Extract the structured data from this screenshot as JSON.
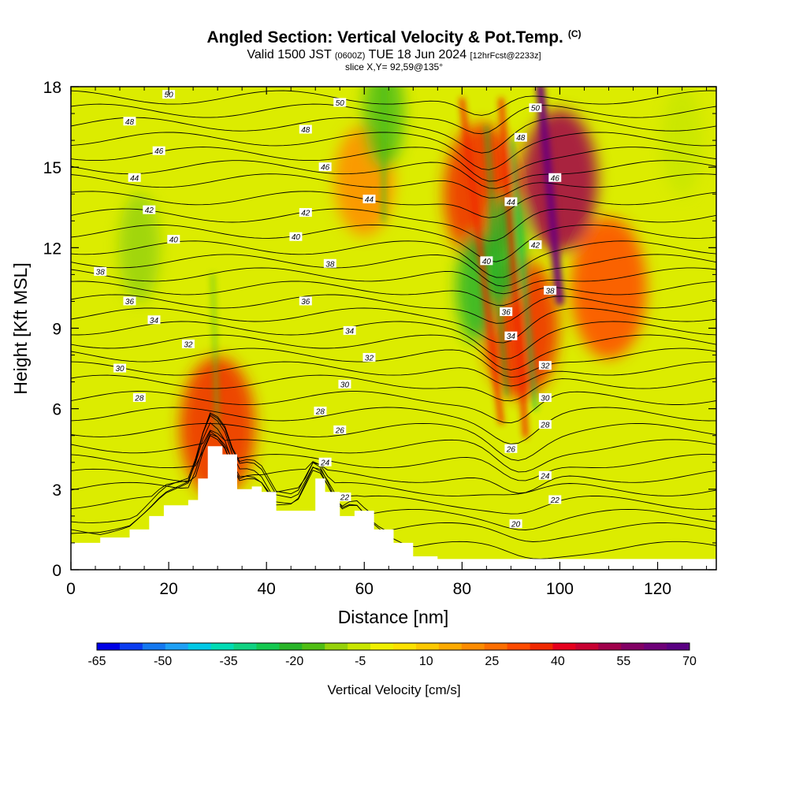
{
  "header": {
    "title": "Angled Section: Vertical Velocity & Pot.Temp.",
    "title_tag": "(C)",
    "valid_a": "Valid 1500 JST",
    "valid_b": "(0600Z)",
    "valid_c": "TUE 18 Jun 2024",
    "valid_d": "[12hrFcst@2233z]",
    "slice": "slice X,Y= 92,59@135°"
  },
  "chart_data": {
    "type": "heatmap",
    "title": "Angled Section: Vertical Velocity & Pot.Temp.",
    "xlabel": "Distance [nm]",
    "ylabel": "Height [Kft MSL]",
    "xlim": [
      0,
      132
    ],
    "ylim": [
      0,
      18
    ],
    "x_ticks": [
      "0",
      "20",
      "40",
      "60",
      "80",
      "100",
      "120"
    ],
    "y_ticks": [
      "0",
      "3",
      "6",
      "9",
      "12",
      "15",
      "18"
    ],
    "colorbar": {
      "label": "Vertical Velocity [cm/s]",
      "tick_labels": [
        "-65",
        "-50",
        "-35",
        "-20",
        "-5",
        "10",
        "25",
        "40",
        "55",
        "70"
      ],
      "colors": [
        "#0000e6",
        "#0a3cf0",
        "#1478f0",
        "#1ea0f5",
        "#00c8e6",
        "#00dcb4",
        "#10d282",
        "#14c850",
        "#28b428",
        "#50be14",
        "#96d20a",
        "#c8e600",
        "#f0f000",
        "#ffe100",
        "#ffc800",
        "#ffaa00",
        "#ff8c00",
        "#ff6e00",
        "#ff4b00",
        "#f02800",
        "#e6001e",
        "#c80032",
        "#a0004b",
        "#820064",
        "#6e0078",
        "#5a0082"
      ]
    },
    "terrain_profile": [
      {
        "x": 0,
        "y": 1.0
      },
      {
        "x": 6,
        "y": 1.2
      },
      {
        "x": 12,
        "y": 1.5
      },
      {
        "x": 16,
        "y": 2.0
      },
      {
        "x": 19,
        "y": 2.4
      },
      {
        "x": 24,
        "y": 2.6
      },
      {
        "x": 26,
        "y": 3.4
      },
      {
        "x": 28,
        "y": 4.6
      },
      {
        "x": 31,
        "y": 4.3
      },
      {
        "x": 34,
        "y": 3.0
      },
      {
        "x": 37,
        "y": 3.1
      },
      {
        "x": 39,
        "y": 2.9
      },
      {
        "x": 42,
        "y": 2.2
      },
      {
        "x": 46,
        "y": 2.2
      },
      {
        "x": 50,
        "y": 3.4
      },
      {
        "x": 52,
        "y": 2.9
      },
      {
        "x": 55,
        "y": 2.0
      },
      {
        "x": 58,
        "y": 2.2
      },
      {
        "x": 62,
        "y": 1.5
      },
      {
        "x": 66,
        "y": 1.0
      },
      {
        "x": 70,
        "y": 0.5
      },
      {
        "x": 75,
        "y": 0.4
      },
      {
        "x": 132,
        "y": 0.3
      }
    ],
    "theta_contours": [
      {
        "label": "20",
        "base": 1.5
      },
      {
        "label": "22",
        "base": 2.5
      },
      {
        "label": "24",
        "base": 3.5
      },
      {
        "label": "26",
        "base": 4.6
      },
      {
        "label": "28",
        "base": 5.8
      },
      {
        "label": "30",
        "base": 7.0
      },
      {
        "label": "32",
        "base": 8.0
      },
      {
        "label": "34",
        "base": 9.0
      },
      {
        "label": "36",
        "base": 10.0
      },
      {
        "label": "38",
        "base": 11.0
      },
      {
        "label": "40",
        "base": 12.0
      },
      {
        "label": "42",
        "base": 13.2
      },
      {
        "label": "44",
        "base": 14.5
      },
      {
        "label": "46",
        "base": 15.5
      },
      {
        "label": "48",
        "base": 16.6
      },
      {
        "label": "50",
        "base": 17.6
      }
    ],
    "contour_labels": [
      {
        "label": "50",
        "x": 20,
        "y": 17.7
      },
      {
        "label": "48",
        "x": 12,
        "y": 16.7
      },
      {
        "label": "46",
        "x": 18,
        "y": 15.6
      },
      {
        "label": "44",
        "x": 13,
        "y": 14.6
      },
      {
        "label": "42",
        "x": 16,
        "y": 13.4
      },
      {
        "label": "40",
        "x": 21,
        "y": 12.3
      },
      {
        "label": "38",
        "x": 6,
        "y": 11.1
      },
      {
        "label": "36",
        "x": 12,
        "y": 10.0
      },
      {
        "label": "34",
        "x": 17,
        "y": 9.3
      },
      {
        "label": "32",
        "x": 24,
        "y": 8.4
      },
      {
        "label": "30",
        "x": 10,
        "y": 7.5
      },
      {
        "label": "28",
        "x": 14,
        "y": 6.4
      },
      {
        "label": "50",
        "x": 55,
        "y": 17.4
      },
      {
        "label": "48",
        "x": 48,
        "y": 16.4
      },
      {
        "label": "46",
        "x": 52,
        "y": 15.0
      },
      {
        "label": "44",
        "x": 61,
        "y": 13.8
      },
      {
        "label": "42",
        "x": 48,
        "y": 13.3
      },
      {
        "label": "40",
        "x": 46,
        "y": 12.4
      },
      {
        "label": "38",
        "x": 53,
        "y": 11.4
      },
      {
        "label": "36",
        "x": 48,
        "y": 10.0
      },
      {
        "label": "34",
        "x": 57,
        "y": 8.9
      },
      {
        "label": "32",
        "x": 61,
        "y": 7.9
      },
      {
        "label": "30",
        "x": 56,
        "y": 6.9
      },
      {
        "label": "28",
        "x": 51,
        "y": 5.9
      },
      {
        "label": "26",
        "x": 55,
        "y": 5.2
      },
      {
        "label": "24",
        "x": 52,
        "y": 4.0
      },
      {
        "label": "22",
        "x": 56,
        "y": 2.7
      },
      {
        "label": "20",
        "x": 91,
        "y": 1.7
      },
      {
        "label": "22",
        "x": 99,
        "y": 2.6
      },
      {
        "label": "24",
        "x": 97,
        "y": 3.5
      },
      {
        "label": "26",
        "x": 90,
        "y": 4.5
      },
      {
        "label": "28",
        "x": 97,
        "y": 5.4
      },
      {
        "label": "30",
        "x": 97,
        "y": 6.4
      },
      {
        "label": "32",
        "x": 97,
        "y": 7.6
      },
      {
        "label": "34",
        "x": 90,
        "y": 8.7
      },
      {
        "label": "36",
        "x": 89,
        "y": 9.6
      },
      {
        "label": "38",
        "x": 98,
        "y": 10.4
      },
      {
        "label": "40",
        "x": 85,
        "y": 11.5
      },
      {
        "label": "42",
        "x": 95,
        "y": 12.1
      },
      {
        "label": "44",
        "x": 90,
        "y": 13.7
      },
      {
        "label": "46",
        "x": 99,
        "y": 14.6
      },
      {
        "label": "48",
        "x": 92,
        "y": 16.1
      },
      {
        "label": "50",
        "x": 95,
        "y": 17.2
      }
    ],
    "velocity_features": [
      {
        "kind": "updraft",
        "x": 100,
        "y": 14.5,
        "value": 55
      },
      {
        "kind": "updraft",
        "x": 110,
        "y": 10.5,
        "value": 30
      },
      {
        "kind": "updraft",
        "x": 84,
        "y": 14.0,
        "value": 35
      },
      {
        "kind": "updraft",
        "x": 92,
        "y": 9.0,
        "value": 35
      },
      {
        "kind": "updraft",
        "x": 60,
        "y": 14.5,
        "value": 20
      },
      {
        "kind": "updraft",
        "x": 30,
        "y": 5.3,
        "value": 40
      },
      {
        "kind": "downdraft",
        "x": 83,
        "y": 10.5,
        "value": -20
      },
      {
        "kind": "downdraft",
        "x": 89,
        "y": 12.0,
        "value": -20
      },
      {
        "kind": "downdraft",
        "x": 14,
        "y": 12.0,
        "value": -10
      },
      {
        "kind": "downdraft",
        "x": 125,
        "y": 16.0,
        "value": -5
      },
      {
        "kind": "downdraft",
        "x": 64,
        "y": 17.0,
        "value": -15
      }
    ]
  }
}
